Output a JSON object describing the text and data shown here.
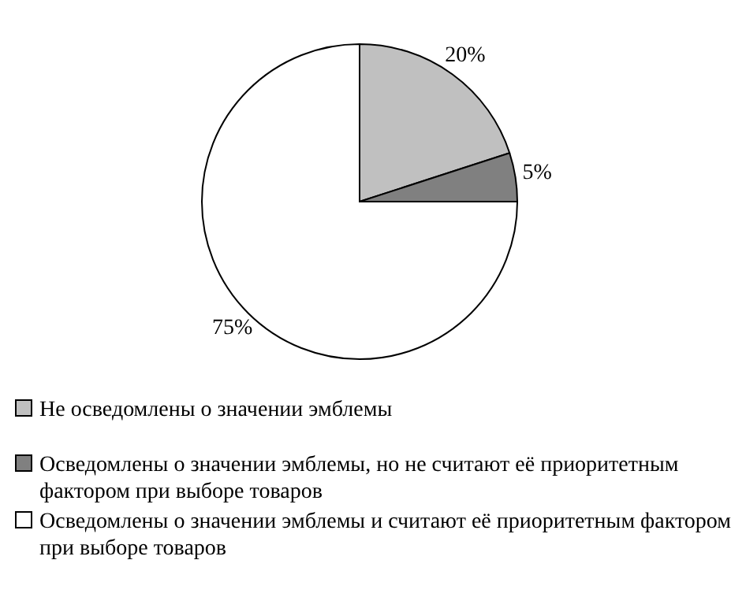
{
  "chart_data": {
    "type": "pie",
    "categories": [
      "Не осведомлены о значении эмблемы",
      "Осведомлены о значении эмблемы, но не считают её приоритетным фактором при выборе товаров",
      "Осведомлены о значении эмблемы и считают её приоритетным фактором при выборе товаров"
    ],
    "values": [
      20,
      5,
      75
    ],
    "colors": [
      "#c0c0c0",
      "#808080",
      "#ffffff"
    ],
    "value_labels": [
      "20%",
      "5%",
      "75%"
    ],
    "legend": "bottom"
  }
}
